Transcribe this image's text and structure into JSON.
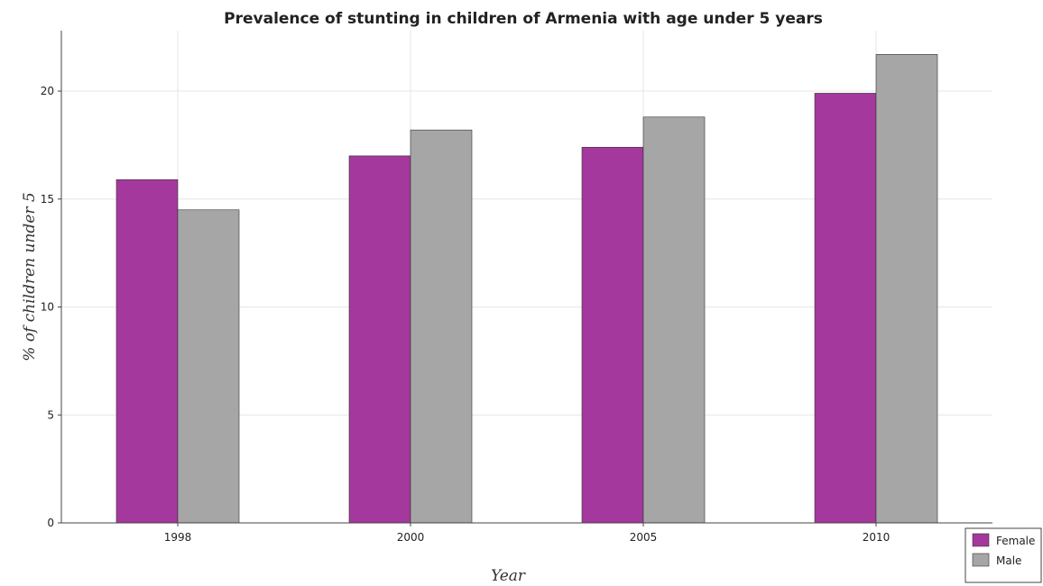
{
  "chart_data": {
    "type": "bar",
    "title": "Prevalence of stunting in children of Armenia with age under 5 years",
    "xlabel": "Year",
    "ylabel": "% of children under 5",
    "categories": [
      "1998",
      "2000",
      "2005",
      "2010"
    ],
    "series": [
      {
        "name": "Female",
        "color": "#a4389c",
        "values": [
          15.9,
          17.0,
          17.4,
          19.9
        ]
      },
      {
        "name": "Male",
        "color": "#a6a6a6",
        "values": [
          14.5,
          18.2,
          18.8,
          21.7
        ]
      }
    ],
    "ylim": [
      0,
      22.8
    ],
    "yticks": [
      0,
      5,
      10,
      15,
      20
    ],
    "grid": true,
    "legend_position": "bottom-right"
  }
}
